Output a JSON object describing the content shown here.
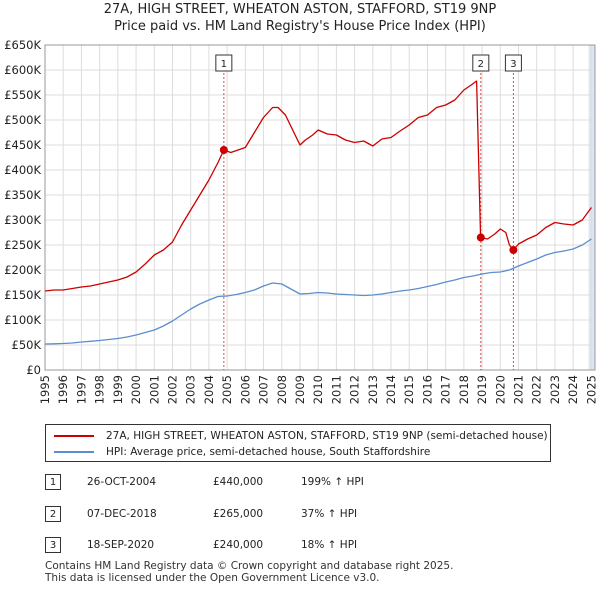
{
  "header": {
    "title_line1": "27A, HIGH STREET, WHEATON ASTON, STAFFORD, ST19 9NP",
    "title_line2": "Price paid vs. HM Land Registry's House Price Index (HPI)"
  },
  "colors": {
    "property_line": "#cc0000",
    "hpi_line": "#5b8ecf",
    "grid": "#dddddd",
    "highlight": "#dde5f2",
    "marker_line": "#cc0000"
  },
  "chart_data": {
    "type": "line",
    "title": "Price paid vs. HM Land Registry's House Price Index (HPI)",
    "xlabel": "",
    "ylabel": "",
    "xlim": [
      1995,
      2025.2
    ],
    "ylim": [
      0,
      650000
    ],
    "grid": true,
    "legend_position": "below",
    "y_ticks": [
      0,
      50000,
      100000,
      150000,
      200000,
      250000,
      300000,
      350000,
      400000,
      450000,
      500000,
      550000,
      600000,
      650000
    ],
    "y_tick_labels": [
      "£0",
      "£50K",
      "£100K",
      "£150K",
      "£200K",
      "£250K",
      "£300K",
      "£350K",
      "£400K",
      "£450K",
      "£500K",
      "£550K",
      "£600K",
      "£650K"
    ],
    "x_ticks": [
      1995,
      1996,
      1997,
      1998,
      1999,
      2000,
      2001,
      2002,
      2003,
      2004,
      2005,
      2006,
      2007,
      2008,
      2009,
      2010,
      2011,
      2012,
      2013,
      2014,
      2015,
      2016,
      2017,
      2018,
      2019,
      2020,
      2021,
      2022,
      2023,
      2024,
      2025
    ],
    "x_tick_labels": [
      "1995",
      "1996",
      "1997",
      "1998",
      "1999",
      "2000",
      "2001",
      "2002",
      "2003",
      "2004",
      "2005",
      "2006",
      "2007",
      "2008",
      "2009",
      "2010",
      "2011",
      "2012",
      "2013",
      "2014",
      "2015",
      "2016",
      "2017",
      "2018",
      "2019",
      "2020",
      "2021",
      "2022",
      "2023",
      "2024",
      "2025"
    ],
    "series": [
      {
        "name": "27A, HIGH STREET, WHEATON ASTON, STAFFORD, ST19 9NP (semi-detached house)",
        "color": "#cc0000",
        "x": [
          1995.0,
          1995.5,
          1996.0,
          1996.5,
          1997.0,
          1997.5,
          1998.0,
          1998.5,
          1999.0,
          1999.5,
          2000.0,
          2000.5,
          2001.0,
          2001.5,
          2002.0,
          2002.5,
          2003.0,
          2003.5,
          2004.0,
          2004.5,
          2004.82,
          2005.2,
          2005.6,
          2006.0,
          2006.5,
          2007.0,
          2007.5,
          2007.8,
          2008.2,
          2008.6,
          2009.0,
          2009.3,
          2009.7,
          2010.0,
          2010.5,
          2011.0,
          2011.5,
          2012.0,
          2012.5,
          2013.0,
          2013.5,
          2014.0,
          2014.5,
          2015.0,
          2015.5,
          2016.0,
          2016.5,
          2017.0,
          2017.5,
          2018.0,
          2018.4,
          2018.7,
          2018.92,
          2019.3,
          2019.7,
          2020.0,
          2020.3,
          2020.5,
          2020.72,
          2021.0,
          2021.5,
          2022.0,
          2022.5,
          2023.0,
          2023.5,
          2024.0,
          2024.5,
          2025.0
        ],
        "values": [
          158000,
          160000,
          160000,
          163000,
          166000,
          168000,
          172000,
          176000,
          180000,
          186000,
          196000,
          212000,
          230000,
          240000,
          256000,
          290000,
          320000,
          350000,
          380000,
          415000,
          440000,
          435000,
          440000,
          445000,
          475000,
          505000,
          525000,
          525000,
          510000,
          480000,
          450000,
          460000,
          470000,
          480000,
          472000,
          470000,
          460000,
          455000,
          458000,
          448000,
          462000,
          465000,
          478000,
          490000,
          505000,
          510000,
          525000,
          530000,
          540000,
          560000,
          570000,
          578000,
          265000,
          262000,
          272000,
          282000,
          275000,
          250000,
          240000,
          252000,
          262000,
          270000,
          285000,
          295000,
          292000,
          290000,
          300000,
          325000
        ]
      },
      {
        "name": "HPI: Average price, semi-detached house, South Staffordshire",
        "color": "#5b8ecf",
        "x": [
          1995.0,
          1995.5,
          1996.0,
          1996.5,
          1997.0,
          1997.5,
          1998.0,
          1998.5,
          1999.0,
          1999.5,
          2000.0,
          2000.5,
          2001.0,
          2001.5,
          2002.0,
          2002.5,
          2003.0,
          2003.5,
          2004.0,
          2004.5,
          2005.0,
          2005.5,
          2006.0,
          2006.5,
          2007.0,
          2007.5,
          2008.0,
          2008.5,
          2009.0,
          2009.5,
          2010.0,
          2010.5,
          2011.0,
          2011.5,
          2012.0,
          2012.5,
          2013.0,
          2013.5,
          2014.0,
          2014.5,
          2015.0,
          2015.5,
          2016.0,
          2016.5,
          2017.0,
          2017.5,
          2018.0,
          2018.5,
          2019.0,
          2019.5,
          2020.0,
          2020.5,
          2021.0,
          2021.5,
          2022.0,
          2022.5,
          2023.0,
          2023.5,
          2024.0,
          2024.5,
          2025.0
        ],
        "values": [
          52000,
          52500,
          53000,
          54000,
          56000,
          57500,
          59000,
          61000,
          63000,
          66000,
          70000,
          75000,
          80000,
          88000,
          98000,
          110000,
          122000,
          132000,
          140000,
          147000,
          148000,
          151000,
          155000,
          160000,
          168000,
          174000,
          172000,
          162000,
          152000,
          153000,
          155000,
          154000,
          152000,
          151000,
          150000,
          149000,
          150000,
          152000,
          155000,
          158000,
          160000,
          163000,
          167000,
          171000,
          176000,
          180000,
          185000,
          188000,
          192000,
          195000,
          196000,
          200000,
          208000,
          215000,
          222000,
          230000,
          235000,
          238000,
          242000,
          250000,
          262000
        ]
      }
    ],
    "sales": [
      {
        "label": "1",
        "x": 2004.82,
        "value": 440000
      },
      {
        "label": "2",
        "x": 2018.93,
        "value": 265000
      },
      {
        "label": "3",
        "x": 2020.72,
        "value": 240000
      }
    ],
    "highlight_band": [
      2024.85,
      2025.2
    ]
  },
  "legend": {
    "entries": [
      "27A, HIGH STREET, WHEATON ASTON, STAFFORD, ST19 9NP (semi-detached house)",
      "HPI: Average price, semi-detached house, South Staffordshire"
    ]
  },
  "transactions": [
    {
      "num": "1",
      "date": "26-OCT-2004",
      "price": "£440,000",
      "pct": "199% ↑ HPI"
    },
    {
      "num": "2",
      "date": "07-DEC-2018",
      "price": "£265,000",
      "pct": "37% ↑ HPI"
    },
    {
      "num": "3",
      "date": "18-SEP-2020",
      "price": "£240,000",
      "pct": "18% ↑ HPI"
    }
  ],
  "footer": {
    "line1": "Contains HM Land Registry data © Crown copyright and database right 2025.",
    "line2": "This data is licensed under the Open Government Licence v3.0."
  }
}
